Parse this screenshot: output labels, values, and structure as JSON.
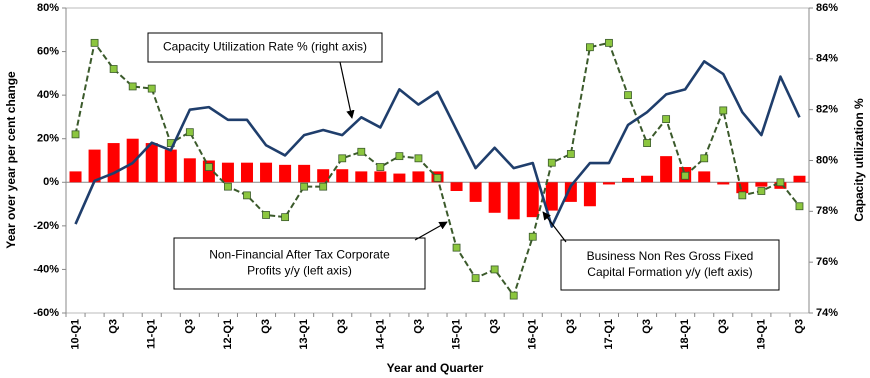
{
  "chart_data": {
    "type": "combo",
    "x_label": "Year and Quarter",
    "y_label": "Year over year per cent change",
    "y2_label": "Capacity utilization %",
    "categories": [
      "10-Q1",
      null,
      "Q3",
      null,
      "11-Q1",
      null,
      "Q3",
      null,
      "12-Q1",
      null,
      "Q3",
      null,
      "13-Q1",
      null,
      "Q3",
      null,
      "14-Q1",
      null,
      "Q3",
      null,
      "15-Q1",
      null,
      "Q3",
      null,
      "16-Q1",
      null,
      "Q3",
      null,
      "17-Q1",
      null,
      "Q3",
      null,
      "18-Q1",
      null,
      "Q3",
      null,
      "19-Q1",
      null,
      "Q3"
    ],
    "ylim": [
      -60,
      80
    ],
    "yticks": [
      {
        "value": -60,
        "label": "-60%"
      },
      {
        "value": -40,
        "label": "-40%"
      },
      {
        "value": -20,
        "label": "-20%"
      },
      {
        "value": 0,
        "label": "0%"
      },
      {
        "value": 20,
        "label": "20%"
      },
      {
        "value": 40,
        "label": "40%"
      },
      {
        "value": 60,
        "label": "60%"
      },
      {
        "value": 80,
        "label": "80%"
      }
    ],
    "y2lim": [
      74,
      86
    ],
    "y2ticks": [
      {
        "value": 74,
        "label": "74%"
      },
      {
        "value": 76,
        "label": "76%"
      },
      {
        "value": 78,
        "label": "78%"
      },
      {
        "value": 80,
        "label": "80%"
      },
      {
        "value": 82,
        "label": "82%"
      },
      {
        "value": 84,
        "label": "84%"
      },
      {
        "value": 86,
        "label": "86%"
      }
    ],
    "series": [
      {
        "type": "bar",
        "color": "#ff0000",
        "values": [
          5,
          15,
          18,
          20,
          18,
          15,
          11,
          10,
          9,
          9,
          9,
          8,
          8,
          6,
          6,
          5,
          5,
          4,
          5,
          5,
          -4,
          -9,
          -14,
          -17,
          -16,
          -13,
          -9,
          -11,
          -1,
          2,
          3,
          12,
          7,
          5,
          -1,
          -5,
          -2,
          -3,
          3
        ]
      },
      {
        "type": "line",
        "color": "#3b5a2b",
        "marker_color": "#8cc63f",
        "dashed": true,
        "values": [
          22,
          64,
          52,
          44,
          43,
          18,
          23,
          7,
          -2,
          -6,
          -15,
          -16,
          -2,
          -2,
          11,
          14,
          7,
          12,
          11,
          2,
          -30,
          -44,
          -40,
          -52,
          -25,
          9,
          13,
          62,
          64,
          40,
          18,
          29,
          3,
          11,
          33,
          -6,
          -4,
          0,
          -11
        ]
      },
      {
        "type": "line",
        "axis": "y2",
        "color": "#1f3e6c",
        "values": [
          77.5,
          79.2,
          79.5,
          79.9,
          80.7,
          80.4,
          82.0,
          82.1,
          81.6,
          81.6,
          80.6,
          80.2,
          81.0,
          81.2,
          81.0,
          81.7,
          81.3,
          82.8,
          82.2,
          82.7,
          81.2,
          79.7,
          80.5,
          79.7,
          79.9,
          77.4,
          79.0,
          79.9,
          79.9,
          81.4,
          81.9,
          82.6,
          82.8,
          83.9,
          83.4,
          81.9,
          81.0,
          83.3,
          81.7
        ]
      }
    ],
    "annotations": [
      {
        "lines": [
          "Capacity Utilization Rate % (right axis)"
        ]
      },
      {
        "lines": [
          "Non-Financial After Tax Corporate",
          "Profits  y/y (left axis)"
        ]
      },
      {
        "lines": [
          "Business Non Res Gross Fixed",
          "Capital Formation y/y (left axis)"
        ]
      }
    ]
  }
}
